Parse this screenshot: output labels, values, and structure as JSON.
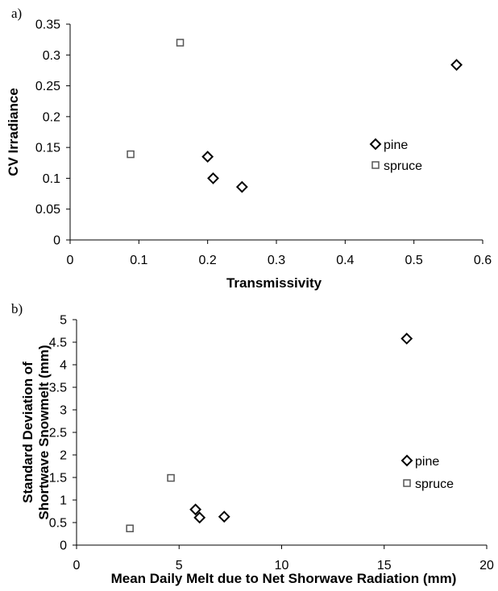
{
  "chart_data": [
    {
      "type": "scatter",
      "panel_label": "a)",
      "xlabel": "Transmissivity",
      "ylabel": "CV Irradiance",
      "xlim": [
        0,
        0.6
      ],
      "ylim": [
        0,
        0.35
      ],
      "x_ticks": [
        "0",
        "0.1",
        "0.2",
        "0.3",
        "0.4",
        "0.5",
        "0.6"
      ],
      "y_ticks": [
        "0",
        "0.05",
        "0.1",
        "0.15",
        "0.2",
        "0.25",
        "0.3",
        "0.35"
      ],
      "x_tick_values": [
        0,
        0.1,
        0.2,
        0.3,
        0.4,
        0.5,
        0.6
      ],
      "y_tick_values": [
        0,
        0.05,
        0.1,
        0.15,
        0.2,
        0.25,
        0.3,
        0.35
      ],
      "grid": false,
      "legend_position": "right",
      "series": [
        {
          "name": "pine",
          "marker": "diamond",
          "points": [
            [
              0.2,
              0.135
            ],
            [
              0.208,
              0.1
            ],
            [
              0.25,
              0.086
            ],
            [
              0.562,
              0.284
            ]
          ]
        },
        {
          "name": "spruce",
          "marker": "square",
          "points": [
            [
              0.088,
              0.139
            ],
            [
              0.16,
              0.32
            ]
          ]
        }
      ]
    },
    {
      "type": "scatter",
      "panel_label": "b)",
      "xlabel": "Mean Daily Melt due to Net Shorwave Radiation (mm)",
      "ylabel_lines": [
        "Standard Deviation of",
        "Shortwave Snowmelt (mm)"
      ],
      "xlim": [
        0,
        20
      ],
      "ylim": [
        0,
        5
      ],
      "x_ticks": [
        "0",
        "5",
        "10",
        "15",
        "20"
      ],
      "y_ticks": [
        "0",
        "0.5",
        "1",
        "1.5",
        "2",
        "2.5",
        "3",
        "3.5",
        "4",
        "4.5",
        "5"
      ],
      "x_tick_values": [
        0,
        5,
        10,
        15,
        20
      ],
      "y_tick_values": [
        0,
        0.5,
        1,
        1.5,
        2,
        2.5,
        3,
        3.5,
        4,
        4.5,
        5
      ],
      "grid": false,
      "legend_position": "right",
      "series": [
        {
          "name": "pine",
          "marker": "diamond",
          "points": [
            [
              5.8,
              0.79
            ],
            [
              6.0,
              0.61
            ],
            [
              7.2,
              0.63
            ],
            [
              16.1,
              4.58
            ]
          ]
        },
        {
          "name": "spruce",
          "marker": "square",
          "points": [
            [
              2.6,
              0.37
            ],
            [
              4.6,
              1.49
            ]
          ]
        }
      ]
    }
  ]
}
